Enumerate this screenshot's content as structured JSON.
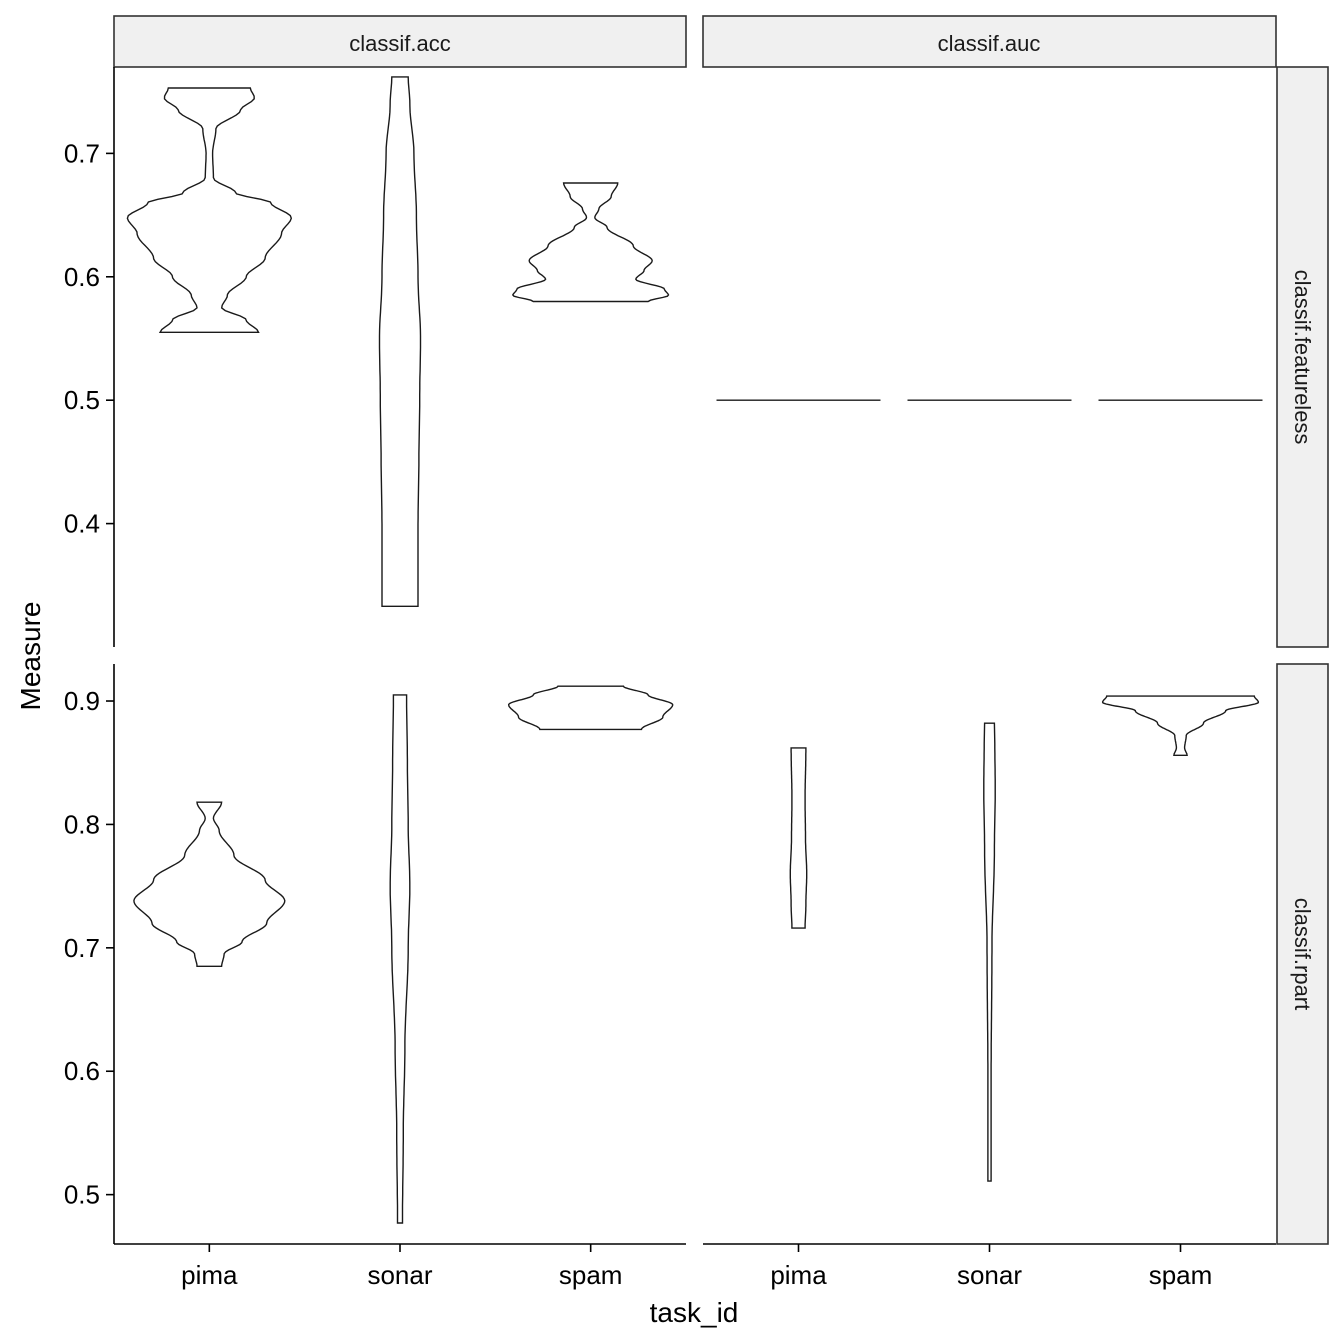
{
  "chart_data": {
    "type": "violin",
    "xlabel": "task_id",
    "ylabel": "Measure",
    "columns": [
      "classif.acc",
      "classif.auc"
    ],
    "rows": [
      "classif.featureless",
      "classif.rpart"
    ],
    "categories": [
      "pima",
      "sonar",
      "spam"
    ],
    "grid": false,
    "legend": "none",
    "panel_rows": [
      {
        "label": "classif.featureless",
        "ylim": [
          0.3,
          0.77
        ],
        "yticks": [
          0.4,
          0.5,
          0.6,
          0.7
        ],
        "ytick_labels": [
          "0.4",
          "0.5",
          "0.6",
          "0.7"
        ]
      },
      {
        "label": "classif.rpart",
        "ylim": [
          0.46,
          0.93
        ],
        "yticks": [
          0.5,
          0.6,
          0.7,
          0.8,
          0.9
        ],
        "ytick_labels": [
          "0.5",
          "0.6",
          "0.7",
          "0.8",
          "0.9"
        ]
      }
    ],
    "panels": [
      {
        "row": 0,
        "col": 0,
        "measure": "classif.acc",
        "learner": "classif.featureless",
        "violins": [
          {
            "task": "pima",
            "min": 0.555,
            "max": 0.753,
            "profile": [
              [
                0.555,
                0.6
              ],
              [
                0.565,
                0.45
              ],
              [
                0.575,
                0.15
              ],
              [
                0.585,
                0.22
              ],
              [
                0.6,
                0.45
              ],
              [
                0.615,
                0.68
              ],
              [
                0.635,
                0.88
              ],
              [
                0.648,
                1.0
              ],
              [
                0.66,
                0.75
              ],
              [
                0.668,
                0.32
              ],
              [
                0.68,
                0.05
              ],
              [
                0.7,
                0.04
              ],
              [
                0.72,
                0.08
              ],
              [
                0.735,
                0.38
              ],
              [
                0.745,
                0.55
              ],
              [
                0.753,
                0.5
              ]
            ]
          },
          {
            "task": "sonar",
            "min": 0.333,
            "max": 0.762,
            "profile": [
              [
                0.333,
                0.22
              ],
              [
                0.4,
                0.22
              ],
              [
                0.45,
                0.23
              ],
              [
                0.5,
                0.24
              ],
              [
                0.55,
                0.25
              ],
              [
                0.6,
                0.22
              ],
              [
                0.65,
                0.2
              ],
              [
                0.7,
                0.17
              ],
              [
                0.74,
                0.12
              ],
              [
                0.762,
                0.1
              ]
            ]
          },
          {
            "task": "spam",
            "min": 0.58,
            "max": 0.676,
            "profile": [
              [
                0.58,
                0.7
              ],
              [
                0.585,
                0.95
              ],
              [
                0.59,
                0.9
              ],
              [
                0.598,
                0.55
              ],
              [
                0.605,
                0.65
              ],
              [
                0.613,
                0.75
              ],
              [
                0.625,
                0.52
              ],
              [
                0.64,
                0.2
              ],
              [
                0.648,
                0.05
              ],
              [
                0.655,
                0.1
              ],
              [
                0.665,
                0.25
              ],
              [
                0.676,
                0.33
              ]
            ]
          }
        ]
      },
      {
        "row": 0,
        "col": 1,
        "measure": "classif.auc",
        "learner": "classif.featureless",
        "violins": [
          {
            "task": "pima",
            "flat": 0.5
          },
          {
            "task": "sonar",
            "flat": 0.5
          },
          {
            "task": "spam",
            "flat": 0.5
          }
        ]
      },
      {
        "row": 1,
        "col": 0,
        "measure": "classif.acc",
        "learner": "classif.rpart",
        "violins": [
          {
            "task": "pima",
            "min": 0.685,
            "max": 0.818,
            "profile": [
              [
                0.685,
                0.15
              ],
              [
                0.695,
                0.18
              ],
              [
                0.705,
                0.4
              ],
              [
                0.72,
                0.7
              ],
              [
                0.738,
                0.92
              ],
              [
                0.755,
                0.68
              ],
              [
                0.775,
                0.3
              ],
              [
                0.795,
                0.12
              ],
              [
                0.805,
                0.05
              ],
              [
                0.818,
                0.15
              ]
            ]
          },
          {
            "task": "sonar",
            "min": 0.477,
            "max": 0.905,
            "profile": [
              [
                0.477,
                0.03
              ],
              [
                0.55,
                0.04
              ],
              [
                0.62,
                0.06
              ],
              [
                0.7,
                0.1
              ],
              [
                0.75,
                0.12
              ],
              [
                0.8,
                0.1
              ],
              [
                0.85,
                0.09
              ],
              [
                0.905,
                0.08
              ]
            ]
          },
          {
            "task": "spam",
            "min": 0.877,
            "max": 0.912,
            "profile": [
              [
                0.877,
                0.62
              ],
              [
                0.887,
                0.88
              ],
              [
                0.897,
                1.0
              ],
              [
                0.905,
                0.7
              ],
              [
                0.912,
                0.4
              ]
            ]
          }
        ]
      },
      {
        "row": 1,
        "col": 1,
        "measure": "classif.auc",
        "learner": "classif.rpart",
        "violins": [
          {
            "task": "pima",
            "min": 0.716,
            "max": 0.862,
            "profile": [
              [
                0.716,
                0.08
              ],
              [
                0.735,
                0.09
              ],
              [
                0.76,
                0.1
              ],
              [
                0.79,
                0.085
              ],
              [
                0.82,
                0.08
              ],
              [
                0.862,
                0.09
              ]
            ]
          },
          {
            "task": "sonar",
            "min": 0.511,
            "max": 0.882,
            "profile": [
              [
                0.511,
                0.02
              ],
              [
                0.6,
                0.02
              ],
              [
                0.7,
                0.03
              ],
              [
                0.78,
                0.06
              ],
              [
                0.83,
                0.07
              ],
              [
                0.862,
                0.065
              ],
              [
                0.882,
                0.06
              ]
            ]
          },
          {
            "task": "spam",
            "min": 0.856,
            "max": 0.904,
            "profile": [
              [
                0.856,
                0.08
              ],
              [
                0.862,
                0.05
              ],
              [
                0.872,
                0.07
              ],
              [
                0.882,
                0.28
              ],
              [
                0.892,
                0.55
              ],
              [
                0.899,
                0.95
              ],
              [
                0.904,
                0.9
              ]
            ]
          }
        ]
      }
    ]
  }
}
